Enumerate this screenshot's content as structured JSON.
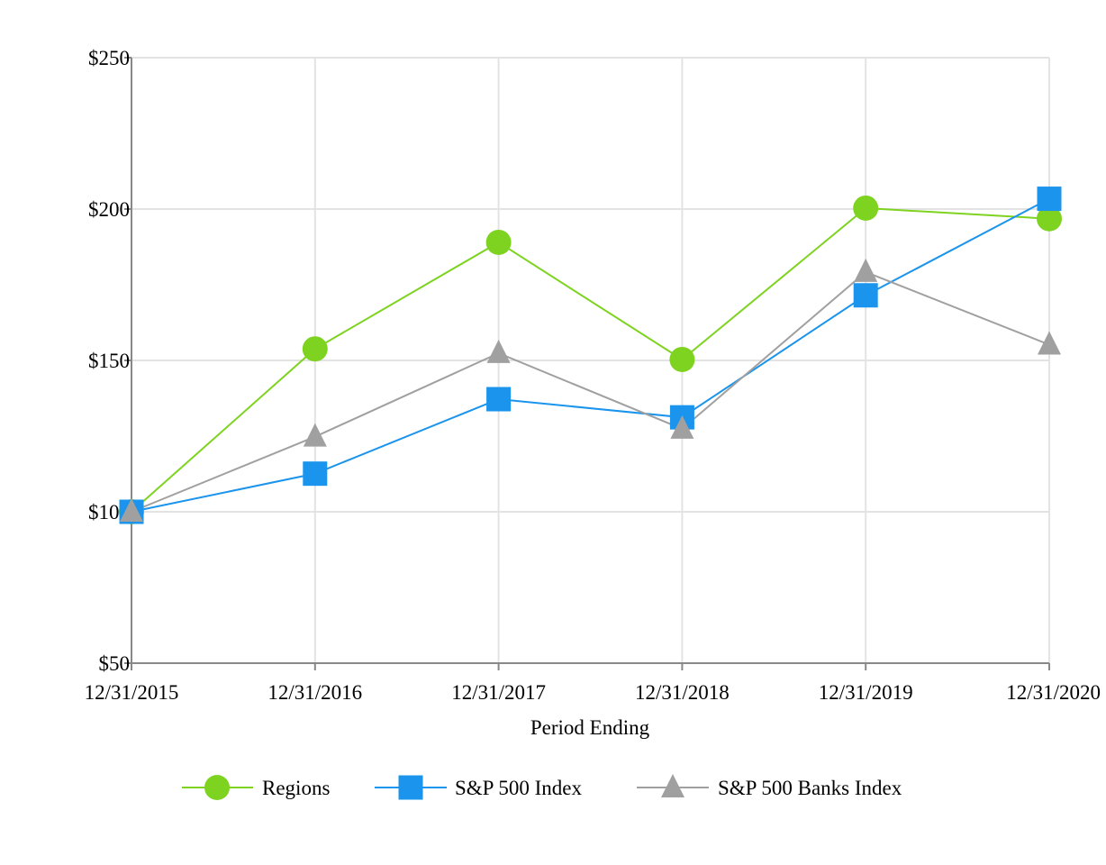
{
  "chart_data": {
    "type": "line",
    "x": [
      "12/31/2015",
      "12/31/2016",
      "12/31/2017",
      "12/31/2018",
      "12/31/2019",
      "12/31/2020"
    ],
    "xlabel": "Period Ending",
    "ylabel": "",
    "ylim": [
      50,
      250
    ],
    "yticks": [
      50,
      100,
      150,
      200,
      250
    ],
    "ytick_labels": [
      "$50",
      "$100",
      "$150",
      "$200",
      "$250"
    ],
    "grid": true,
    "legend_position": "bottom",
    "series": [
      {
        "name": "Regions",
        "marker": "circle",
        "color": "#7ED321",
        "values": [
          100,
          153.8,
          189,
          150.3,
          200.3,
          196.8
        ]
      },
      {
        "name": "S&P 500 Index",
        "marker": "square",
        "color": "#1A94EC",
        "values": [
          100,
          112.6,
          137.2,
          131.2,
          171.5,
          203.4
        ]
      },
      {
        "name": "S&P 500 Banks Index",
        "marker": "triangle",
        "color": "#A0A0A0",
        "values": [
          100,
          124.8,
          152.4,
          127.4,
          179.2,
          155.2
        ]
      }
    ]
  }
}
